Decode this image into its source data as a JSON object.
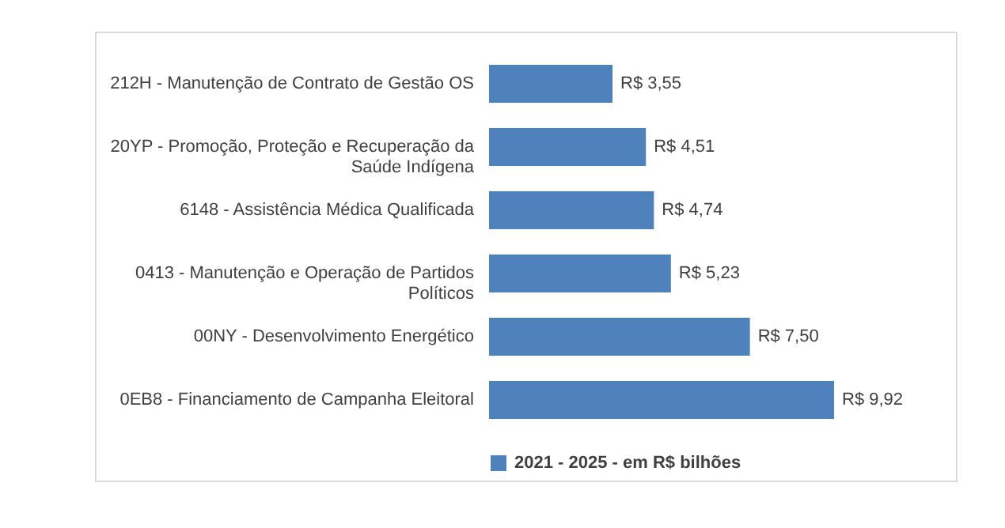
{
  "chart_data": {
    "type": "bar",
    "orientation": "horizontal",
    "legend": "bottom",
    "categories": [
      "212H - Manutenção de Contrato de Gestão OS",
      "20YP - Promoção, Proteção e Recuperação da Saúde Indígena",
      "6148 - Assistência Médica Qualificada",
      "0413 - Manutenção e Operação de Partidos Políticos",
      "00NY - Desenvolvimento Energético",
      "0EB8 - Financiamento de Campanha Eleitoral"
    ],
    "series": [
      {
        "name": "2021 - 2025 - em R$ bilhões",
        "color": "#4f81bd",
        "values": [
          3.55,
          4.51,
          4.74,
          5.23,
          7.5,
          9.92
        ],
        "value_labels": [
          "R$ 3,55",
          "R$ 4,51",
          "R$ 4,74",
          "R$ 5,23",
          "R$ 7,50",
          "R$ 9,92"
        ]
      }
    ]
  }
}
